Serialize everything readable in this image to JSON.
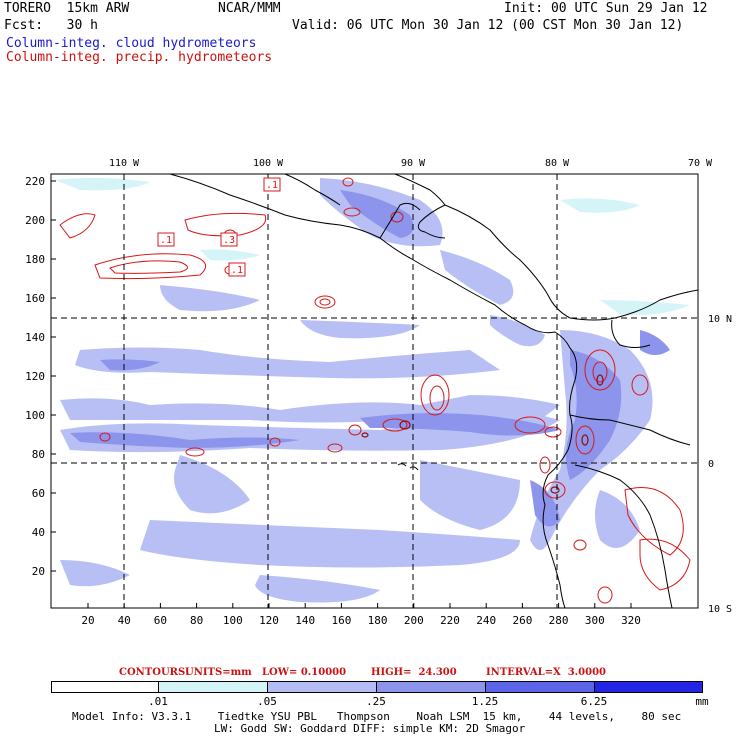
{
  "header": {
    "model": "TORERO  15km ARW",
    "org": "NCAR/MMM",
    "init": "Init: 00 UTC Sun 29 Jan 12",
    "fcst": "Fcst:   30 h",
    "valid": "Valid: 06 UTC Mon 30 Jan 12 (00 CST Mon 30 Jan 12)",
    "field_cloud": "Column-integ. cloud hydrometeors",
    "field_precip": "Column-integ. precip. hydrometeors"
  },
  "map": {
    "lon_labels": [
      "110 W",
      "100 W",
      "90 W",
      "80 W",
      "70 W"
    ],
    "lat_labels_right": [
      "10 N",
      "0",
      "10 S"
    ],
    "y_ticks": [
      "220",
      "200",
      "180",
      "160",
      "140",
      "120",
      "100",
      "80",
      "60",
      "40",
      "20"
    ],
    "x_ticks": [
      "20",
      "40",
      "60",
      "80",
      "100",
      "120",
      "140",
      "160",
      "180",
      "200",
      "220",
      "240",
      "260",
      "280",
      "300",
      "320"
    ],
    "contour_labels": [
      ".1",
      ".1",
      ".3",
      ".1"
    ]
  },
  "contour_info": {
    "label": "CONTOURS:",
    "units": "UNITS=mm",
    "low": "LOW= 0.10000",
    "high": "HIGH=  24.300",
    "interval": "INTERVAL=X  3.0000"
  },
  "colorbar": {
    "colors": [
      "#ffffff",
      "#d4f4f8",
      "#b4bcf4",
      "#8c94ec",
      "#5c64e8",
      "#2424e4"
    ],
    "labels": [
      ".01",
      ".05",
      ".25",
      "1.25",
      "6.25"
    ],
    "unit": "mm"
  },
  "footer": {
    "line1": "Model Info: V3.3.1    Tiedtke YSU PBL   Thompson    Noah LSM  15 km,    44 levels,    80 sec",
    "line2": "LW: Godd SW: Goddard DIFF: simple KM: 2D Smagor"
  }
}
